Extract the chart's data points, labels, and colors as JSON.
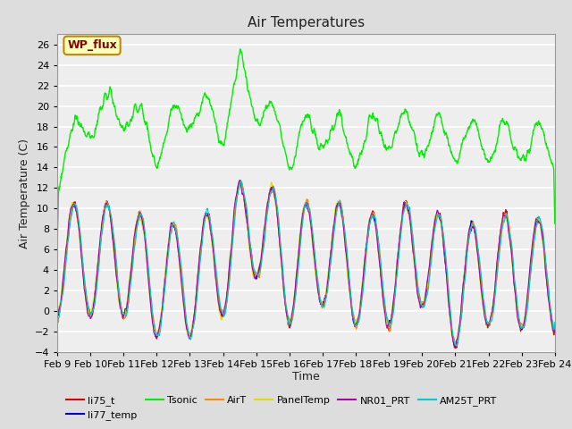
{
  "title": "Air Temperatures",
  "xlabel": "Time",
  "ylabel": "Air Temperature (C)",
  "ylim": [
    -4,
    27
  ],
  "yticks": [
    -4,
    -2,
    0,
    2,
    4,
    6,
    8,
    10,
    12,
    14,
    16,
    18,
    20,
    22,
    24,
    26
  ],
  "xticklabels": [
    "Feb 9",
    "Feb 10",
    "Feb 11",
    "Feb 12",
    "Feb 13",
    "Feb 14",
    "Feb 15",
    "Feb 16",
    "Feb 17",
    "Feb 18",
    "Feb 19",
    "Feb 20",
    "Feb 21",
    "Feb 22",
    "Feb 23",
    "Feb 24"
  ],
  "series_colors": {
    "li75_t": "#dd0000",
    "li77_temp": "#0000dd",
    "Tsonic": "#00ee00",
    "AirT": "#ff8800",
    "PanelTemp": "#dddd00",
    "NR01_PRT": "#aa00aa",
    "AM25T_PRT": "#00cccc"
  },
  "annotation_text": "WP_flux",
  "annotation_color": "#880000",
  "annotation_bg": "#ffffbb",
  "annotation_border": "#bb8800",
  "fig_bg": "#dddddd",
  "plot_bg": "#eeeeee",
  "grid_color": "#ffffff",
  "figsize": [
    6.4,
    4.8
  ],
  "dpi": 100
}
